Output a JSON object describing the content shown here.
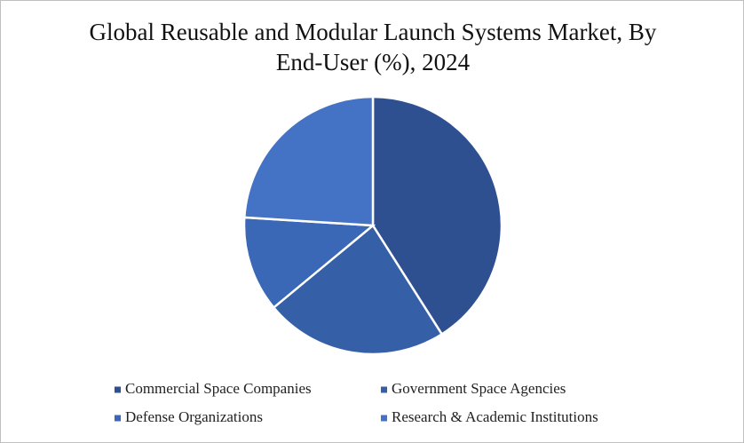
{
  "chart_data": {
    "type": "pie",
    "title": "Global Reusable and Modular Launch Systems Market, By End-User (%), 2024",
    "categories": [
      "Commercial Space Companies",
      "Government Space Agencies",
      "Defense Organizations",
      "Research & Academic Institutions"
    ],
    "values": [
      41,
      23,
      12,
      24
    ],
    "colors": [
      "#2f5090",
      "#3560a8",
      "#3a67b6",
      "#4472c4"
    ],
    "legend": "bottom"
  }
}
